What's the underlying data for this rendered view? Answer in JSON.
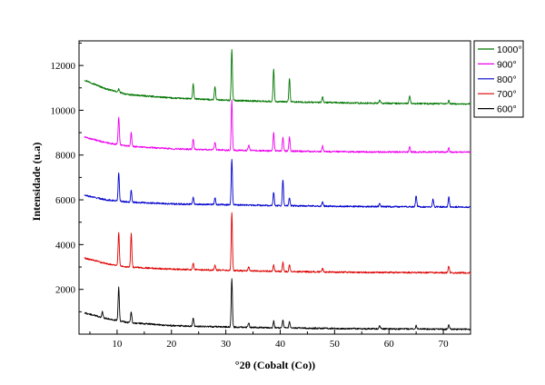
{
  "chart_data": {
    "type": "line",
    "title": "",
    "xlabel": "°2θ (Cobalt (Co))",
    "ylabel": "Intensidade (u.a)",
    "xlim": [
      3,
      75
    ],
    "ylim": [
      0,
      13100
    ],
    "x_ticks": [
      10,
      20,
      30,
      40,
      50,
      60,
      70
    ],
    "y_ticks": [
      2000,
      4000,
      6000,
      8000,
      10000,
      12000
    ],
    "grid": false,
    "legend_position": "top-right-outside",
    "series": [
      {
        "name": "1000°",
        "color": "#007700",
        "baseline": [
          [
            4,
            11350
          ],
          [
            8,
            10950
          ],
          [
            12,
            10700
          ],
          [
            20,
            10550
          ],
          [
            30,
            10450
          ],
          [
            40,
            10380
          ],
          [
            55,
            10320
          ],
          [
            75,
            10280
          ]
        ],
        "peaks": [
          [
            10.3,
            150
          ],
          [
            24.0,
            650
          ],
          [
            28.0,
            600
          ],
          [
            31.1,
            2250
          ],
          [
            38.8,
            1450
          ],
          [
            41.7,
            1050
          ],
          [
            47.8,
            250
          ],
          [
            58.3,
            150
          ],
          [
            63.8,
            350
          ],
          [
            71.0,
            150
          ]
        ]
      },
      {
        "name": "900°",
        "color": "#ee00ee",
        "baseline": [
          [
            4,
            8800
          ],
          [
            8,
            8550
          ],
          [
            12,
            8400
          ],
          [
            20,
            8280
          ],
          [
            30,
            8220
          ],
          [
            40,
            8180
          ],
          [
            55,
            8140
          ],
          [
            75,
            8130
          ]
        ],
        "peaks": [
          [
            10.3,
            1250
          ],
          [
            12.6,
            600
          ],
          [
            24.0,
            450
          ],
          [
            28.0,
            350
          ],
          [
            31.1,
            2250
          ],
          [
            34.2,
            250
          ],
          [
            38.8,
            800
          ],
          [
            40.5,
            600
          ],
          [
            41.7,
            650
          ],
          [
            47.8,
            250
          ],
          [
            63.8,
            250
          ],
          [
            71.0,
            200
          ]
        ]
      },
      {
        "name": "800°",
        "color": "#0000cc",
        "baseline": [
          [
            4,
            6200
          ],
          [
            8,
            6000
          ],
          [
            12,
            5900
          ],
          [
            20,
            5820
          ],
          [
            30,
            5780
          ],
          [
            40,
            5740
          ],
          [
            55,
            5700
          ],
          [
            75,
            5680
          ]
        ],
        "peaks": [
          [
            10.3,
            1250
          ],
          [
            12.6,
            550
          ],
          [
            24.0,
            300
          ],
          [
            28.0,
            300
          ],
          [
            31.1,
            2050
          ],
          [
            38.8,
            600
          ],
          [
            40.5,
            1150
          ],
          [
            41.7,
            350
          ],
          [
            47.8,
            200
          ],
          [
            58.3,
            150
          ],
          [
            65.0,
            500
          ],
          [
            68.1,
            350
          ],
          [
            71.0,
            450
          ]
        ]
      },
      {
        "name": "700°",
        "color": "#dd0000",
        "baseline": [
          [
            4,
            3400
          ],
          [
            8,
            3150
          ],
          [
            12,
            3000
          ],
          [
            20,
            2900
          ],
          [
            30,
            2850
          ],
          [
            40,
            2800
          ],
          [
            55,
            2760
          ],
          [
            75,
            2740
          ]
        ],
        "peaks": [
          [
            10.3,
            1500
          ],
          [
            12.6,
            1500
          ],
          [
            24.0,
            300
          ],
          [
            28.0,
            200
          ],
          [
            31.1,
            2550
          ],
          [
            34.2,
            200
          ],
          [
            38.8,
            300
          ],
          [
            40.5,
            400
          ],
          [
            41.7,
            300
          ],
          [
            47.8,
            150
          ],
          [
            71.0,
            300
          ]
        ]
      },
      {
        "name": "600°",
        "color": "#000000",
        "baseline": [
          [
            4,
            950
          ],
          [
            8,
            700
          ],
          [
            12,
            520
          ],
          [
            20,
            380
          ],
          [
            30,
            320
          ],
          [
            40,
            280
          ],
          [
            55,
            240
          ],
          [
            75,
            220
          ]
        ],
        "peaks": [
          [
            7.3,
            250
          ],
          [
            10.3,
            1500
          ],
          [
            12.6,
            500
          ],
          [
            24.0,
            350
          ],
          [
            31.1,
            2150
          ],
          [
            34.2,
            200
          ],
          [
            38.8,
            300
          ],
          [
            40.5,
            350
          ],
          [
            41.7,
            300
          ],
          [
            58.3,
            150
          ],
          [
            65.0,
            150
          ],
          [
            71.0,
            200
          ]
        ]
      }
    ]
  }
}
